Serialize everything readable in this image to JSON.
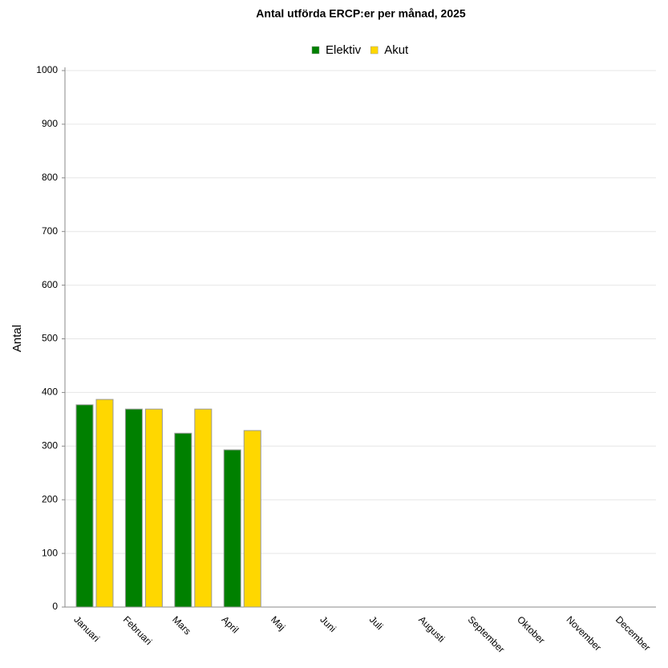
{
  "chart_data": {
    "type": "bar",
    "title": "Antal utförda ERCP:er per månad, 2025",
    "y_label": "Antal",
    "categories": [
      "Januari",
      "Februari",
      "Mars",
      "April",
      "Maj",
      "Juni",
      "Juli",
      "Augusti",
      "September",
      "Oktober",
      "November",
      "December"
    ],
    "series": [
      {
        "name": "Elektiv",
        "color": "#008000",
        "values": [
          377,
          369,
          324,
          293,
          0,
          0,
          0,
          0,
          0,
          0,
          0,
          0
        ]
      },
      {
        "name": "Akut",
        "color": "#ffd700",
        "values": [
          387,
          369,
          369,
          329,
          0,
          0,
          0,
          0,
          0,
          0,
          0,
          0
        ]
      }
    ],
    "ylim": [
      0,
      1000
    ],
    "yticks": [
      0,
      100,
      200,
      300,
      400,
      500,
      600,
      700,
      800,
      900,
      1000
    ],
    "grid": true
  }
}
